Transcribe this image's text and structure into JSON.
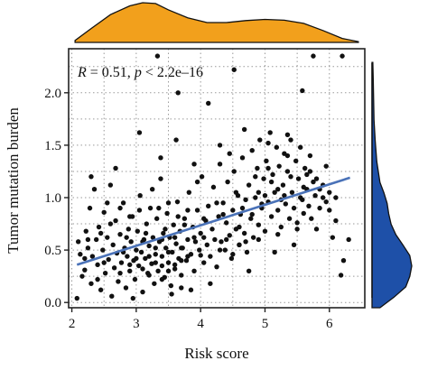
{
  "chart_data": {
    "type": "scatter",
    "title": "",
    "annotation": {
      "r_label": "R",
      "r_value": " = 0.51, ",
      "p_label": "p",
      "p_value": " < 2.2e–16"
    },
    "xlabel": "Risk score",
    "ylabel": "Tumor mutation burden",
    "xlim": [
      1.95,
      6.55
    ],
    "ylim": [
      -0.05,
      2.42
    ],
    "x_ticks": [
      2,
      3,
      4,
      5,
      6
    ],
    "y_ticks": [
      0.0,
      0.5,
      1.0,
      1.5,
      2.0
    ],
    "y_tick_labels": [
      "0.0",
      "0.5",
      "1.0",
      "1.5",
      "2.0"
    ],
    "grid": true,
    "grid_style": "dotted",
    "fit_line": {
      "x": [
        2.08,
        6.32
      ],
      "y": [
        0.36,
        1.19
      ],
      "color": "#4a72b8"
    },
    "marginal_top": {
      "type": "density",
      "color": "#f2a01c",
      "x": [
        2.05,
        2.3,
        2.6,
        2.9,
        3.1,
        3.3,
        3.5,
        3.8,
        4.1,
        4.4,
        4.7,
        5.0,
        5.3,
        5.6,
        5.9,
        6.2,
        6.45
      ],
      "y": [
        0.05,
        0.35,
        0.7,
        0.92,
        1.0,
        0.98,
        0.82,
        0.62,
        0.5,
        0.5,
        0.55,
        0.58,
        0.56,
        0.48,
        0.3,
        0.1,
        0.02
      ]
    },
    "marginal_right": {
      "type": "density",
      "color": "#1e50a8",
      "y": [
        0.0,
        0.1,
        0.2,
        0.3,
        0.4,
        0.5,
        0.6,
        0.7,
        0.8,
        0.9,
        1.0,
        1.1,
        1.2,
        1.4,
        1.6,
        1.8,
        2.0,
        2.2,
        2.35
      ],
      "x": [
        0.2,
        0.55,
        0.85,
        0.95,
        1.0,
        0.95,
        0.78,
        0.6,
        0.48,
        0.42,
        0.38,
        0.3,
        0.2,
        0.12,
        0.08,
        0.05,
        0.04,
        0.03,
        0.02
      ]
    },
    "colors": {
      "points": "#111111",
      "frame": "#222222",
      "grid": "#9a9a9a"
    },
    "points": [
      [
        2.08,
        0.04
      ],
      [
        2.1,
        0.58
      ],
      [
        2.13,
        0.46
      ],
      [
        2.16,
        0.25
      ],
      [
        2.2,
        0.31
      ],
      [
        2.22,
        0.68
      ],
      [
        2.25,
        0.52
      ],
      [
        2.28,
        0.9
      ],
      [
        2.3,
        0.18
      ],
      [
        2.32,
        0.44
      ],
      [
        2.35,
        1.08
      ],
      [
        2.38,
        0.6
      ],
      [
        2.4,
        0.36
      ],
      [
        2.42,
        0.72
      ],
      [
        2.45,
        0.12
      ],
      [
        2.48,
        0.5
      ],
      [
        2.5,
        0.86
      ],
      [
        2.52,
        0.28
      ],
      [
        2.55,
        0.62
      ],
      [
        2.57,
        0.41
      ],
      [
        2.6,
        1.12
      ],
      [
        2.62,
        0.06
      ],
      [
        2.64,
        0.55
      ],
      [
        2.66,
        0.33
      ],
      [
        2.68,
        0.78
      ],
      [
        2.7,
        0.47
      ],
      [
        2.72,
        0.2
      ],
      [
        2.75,
        0.65
      ],
      [
        2.77,
        0.38
      ],
      [
        2.8,
        0.95
      ],
      [
        2.82,
        0.52
      ],
      [
        2.84,
        0.14
      ],
      [
        2.86,
        0.44
      ],
      [
        2.88,
        0.7
      ],
      [
        2.9,
        0.3
      ],
      [
        2.92,
        0.58
      ],
      [
        2.94,
        0.82
      ],
      [
        2.96,
        0.4
      ],
      [
        2.98,
        0.22
      ],
      [
        3.0,
        0.5
      ],
      [
        3.02,
        0.68
      ],
      [
        3.04,
        0.35
      ],
      [
        3.06,
        1.02
      ],
      [
        3.08,
        0.48
      ],
      [
        3.1,
        0.1
      ],
      [
        3.12,
        0.6
      ],
      [
        3.14,
        0.42
      ],
      [
        3.16,
        0.75
      ],
      [
        3.18,
        0.28
      ],
      [
        3.2,
        0.54
      ],
      [
        3.22,
        0.9
      ],
      [
        3.24,
        0.37
      ],
      [
        3.26,
        0.62
      ],
      [
        3.28,
        0.18
      ],
      [
        3.3,
        0.46
      ],
      [
        3.32,
        0.8
      ],
      [
        3.34,
        0.3
      ],
      [
        3.36,
        0.58
      ],
      [
        3.38,
        1.18
      ],
      [
        3.4,
        0.44
      ],
      [
        3.42,
        0.66
      ],
      [
        3.44,
        0.24
      ],
      [
        3.46,
        0.52
      ],
      [
        3.48,
        0.85
      ],
      [
        3.5,
        0.38
      ],
      [
        3.52,
        0.62
      ],
      [
        3.54,
        0.16
      ],
      [
        3.56,
        0.48
      ],
      [
        3.58,
        0.74
      ],
      [
        3.6,
        0.32
      ],
      [
        3.62,
        0.56
      ],
      [
        3.64,
        0.96
      ],
      [
        3.66,
        0.42
      ],
      [
        3.68,
        0.68
      ],
      [
        3.7,
        0.26
      ],
      [
        3.72,
        0.52
      ],
      [
        3.75,
        0.8
      ],
      [
        3.78,
        0.4
      ],
      [
        3.8,
        0.6
      ],
      [
        3.82,
        1.05
      ],
      [
        3.85,
        0.46
      ],
      [
        3.88,
        0.72
      ],
      [
        3.9,
        0.3
      ],
      [
        3.92,
        0.58
      ],
      [
        3.95,
        0.88
      ],
      [
        3.98,
        0.5
      ],
      [
        4.0,
        0.66
      ],
      [
        4.02,
        1.2
      ],
      [
        4.05,
        0.38
      ],
      [
        4.08,
        0.78
      ],
      [
        4.1,
        0.55
      ],
      [
        4.12,
        0.92
      ],
      [
        4.15,
        0.44
      ],
      [
        4.18,
        0.7
      ],
      [
        4.2,
        1.1
      ],
      [
        4.22,
        0.6
      ],
      [
        4.25,
        0.34
      ],
      [
        4.28,
        0.82
      ],
      [
        4.3,
        1.32
      ],
      [
        4.32,
        0.58
      ],
      [
        4.35,
        0.95
      ],
      [
        4.38,
        0.5
      ],
      [
        4.4,
        0.76
      ],
      [
        4.42,
        1.15
      ],
      [
        4.45,
        0.64
      ],
      [
        4.48,
        0.42
      ],
      [
        4.5,
        0.88
      ],
      [
        4.52,
        1.25
      ],
      [
        4.55,
        0.7
      ],
      [
        4.58,
        1.02
      ],
      [
        4.6,
        0.55
      ],
      [
        4.62,
        0.84
      ],
      [
        4.65,
        1.38
      ],
      [
        4.68,
        0.66
      ],
      [
        4.7,
        0.98
      ],
      [
        4.72,
        0.48
      ],
      [
        4.75,
        1.12
      ],
      [
        4.78,
        0.8
      ],
      [
        4.8,
        1.45
      ],
      [
        4.82,
        0.62
      ],
      [
        4.85,
        1.0
      ],
      [
        4.88,
        1.28
      ],
      [
        4.9,
        0.74
      ],
      [
        4.92,
        1.55
      ],
      [
        4.95,
        0.9
      ],
      [
        4.98,
        1.18
      ],
      [
        5.0,
        0.68
      ],
      [
        5.02,
        1.35
      ],
      [
        5.05,
        0.96
      ],
      [
        5.08,
        1.62
      ],
      [
        5.1,
        0.82
      ],
      [
        5.12,
        1.22
      ],
      [
        5.15,
        1.05
      ],
      [
        5.18,
        1.48
      ],
      [
        5.2,
        0.88
      ],
      [
        5.22,
        1.3
      ],
      [
        5.25,
        0.72
      ],
      [
        5.28,
        1.12
      ],
      [
        5.3,
        1.42
      ],
      [
        5.32,
        0.94
      ],
      [
        5.35,
        1.25
      ],
      [
        5.38,
        0.8
      ],
      [
        5.4,
        1.55
      ],
      [
        5.42,
        1.05
      ],
      [
        5.45,
        0.9
      ],
      [
        5.48,
        1.35
      ],
      [
        5.5,
        0.76
      ],
      [
        5.52,
        1.18
      ],
      [
        5.55,
        1.48
      ],
      [
        5.58,
        0.98
      ],
      [
        5.6,
        0.85
      ],
      [
        5.62,
        1.28
      ],
      [
        5.65,
        1.08
      ],
      [
        5.68,
        0.92
      ],
      [
        5.7,
        1.4
      ],
      [
        5.72,
        0.8
      ],
      [
        5.75,
        1.15
      ],
      [
        5.78,
        1.02
      ],
      [
        5.8,
        0.7
      ],
      [
        5.85,
        0.9
      ],
      [
        5.9,
        1.12
      ],
      [
        5.95,
        0.96
      ],
      [
        6.0,
        1.05
      ],
      [
        6.05,
        0.62
      ],
      [
        6.1,
        0.78
      ],
      [
        6.18,
        0.26
      ],
      [
        6.22,
        0.4
      ],
      [
        6.3,
        0.6
      ],
      [
        3.33,
        2.35
      ],
      [
        3.65,
        2.0
      ],
      [
        4.12,
        1.9
      ],
      [
        4.52,
        2.22
      ],
      [
        5.58,
        2.02
      ],
      [
        5.75,
        2.35
      ],
      [
        6.2,
        2.35
      ],
      [
        3.05,
        1.62
      ],
      [
        3.38,
        1.38
      ],
      [
        3.62,
        1.55
      ],
      [
        2.68,
        1.28
      ],
      [
        2.3,
        1.2
      ],
      [
        4.68,
        1.65
      ],
      [
        3.9,
        1.32
      ],
      [
        4.3,
        1.5
      ],
      [
        2.6,
        0.75
      ],
      [
        2.9,
        0.82
      ],
      [
        3.5,
        0.95
      ],
      [
        3.8,
        0.88
      ],
      [
        4.9,
        1.05
      ],
      [
        5.3,
        1.02
      ],
      [
        2.2,
        0.42
      ],
      [
        2.5,
        0.38
      ],
      [
        2.85,
        0.62
      ],
      [
        3.15,
        0.66
      ],
      [
        3.45,
        0.7
      ],
      [
        3.75,
        0.74
      ],
      [
        4.05,
        0.8
      ],
      [
        4.35,
        0.84
      ],
      [
        4.65,
        0.9
      ],
      [
        4.95,
        0.94
      ],
      [
        5.25,
        0.98
      ],
      [
        5.55,
        1.0
      ],
      [
        5.85,
        1.08
      ],
      [
        2.4,
        0.22
      ],
      [
        2.75,
        0.28
      ],
      [
        3.1,
        0.32
      ],
      [
        3.4,
        0.35
      ],
      [
        3.7,
        0.4
      ],
      [
        4.0,
        0.45
      ],
      [
        4.3,
        0.5
      ],
      [
        4.6,
        0.55
      ],
      [
        4.9,
        0.6
      ],
      [
        5.2,
        0.65
      ],
      [
        5.5,
        0.7
      ],
      [
        2.55,
        0.95
      ],
      [
        3.25,
        1.08
      ],
      [
        3.95,
        1.15
      ],
      [
        4.45,
        1.42
      ],
      [
        5.05,
        1.52
      ],
      [
        5.35,
        1.6
      ],
      [
        5.65,
        1.22
      ],
      [
        5.95,
        1.3
      ],
      [
        3.55,
        0.08
      ],
      [
        4.15,
        0.18
      ],
      [
        4.75,
        0.3
      ],
      [
        2.95,
        0.04
      ],
      [
        3.85,
        0.12
      ],
      [
        5.15,
        0.48
      ],
      [
        5.45,
        0.55
      ],
      [
        3.2,
        0.44
      ],
      [
        3.3,
        0.52
      ],
      [
        3.4,
        0.6
      ],
      [
        3.5,
        0.48
      ],
      [
        3.6,
        0.36
      ],
      [
        3.7,
        0.52
      ],
      [
        3.8,
        0.44
      ],
      [
        3.9,
        0.62
      ],
      [
        2.8,
        0.48
      ],
      [
        2.9,
        0.36
      ],
      [
        3.0,
        0.42
      ],
      [
        3.1,
        0.58
      ],
      [
        3.2,
        0.26
      ],
      [
        3.3,
        0.38
      ],
      [
        3.4,
        0.22
      ],
      [
        3.5,
        0.3
      ],
      [
        3.6,
        0.62
      ],
      [
        3.7,
        0.14
      ],
      [
        4.4,
        0.6
      ],
      [
        4.5,
        0.46
      ],
      [
        4.6,
        0.72
      ],
      [
        4.7,
        0.58
      ],
      [
        4.8,
        0.84
      ],
      [
        5.0,
        1.02
      ],
      [
        5.1,
        1.15
      ],
      [
        5.2,
        1.08
      ],
      [
        5.4,
        1.2
      ],
      [
        5.6,
        1.1
      ],
      [
        5.7,
        1.25
      ],
      [
        5.8,
        1.18
      ],
      [
        5.9,
        1.0
      ],
      [
        6.0,
        0.88
      ],
      [
        6.1,
        1.0
      ],
      [
        5.35,
        1.4
      ],
      [
        5.05,
        1.28
      ],
      [
        4.85,
        1.2
      ],
      [
        4.55,
        1.05
      ],
      [
        4.25,
        0.95
      ],
      [
        4.05,
        0.62
      ],
      [
        3.65,
        0.82
      ],
      [
        3.35,
        0.9
      ],
      [
        3.05,
        0.88
      ],
      [
        2.75,
        0.9
      ],
      [
        2.45,
        0.66
      ],
      [
        2.25,
        0.6
      ]
    ]
  }
}
